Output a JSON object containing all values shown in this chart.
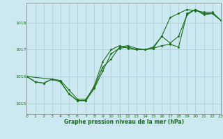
{
  "background_color": "#cce8f0",
  "grid_color": "#aaccdd",
  "line_color": "#1a6e1a",
  "xlabel": "Graphe pression niveau de la mer (hPa)",
  "xlim": [
    0,
    23
  ],
  "ylim": [
    1014.6,
    1018.75
  ],
  "yticks": [
    1015,
    1016,
    1017,
    1018
  ],
  "xticks": [
    0,
    1,
    2,
    3,
    4,
    5,
    6,
    7,
    8,
    9,
    10,
    11,
    12,
    13,
    14,
    15,
    16,
    17,
    18,
    19,
    20,
    21,
    22,
    23
  ],
  "series": [
    {
      "x": [
        0,
        1,
        2,
        3,
        4,
        5,
        6,
        7,
        8,
        9,
        10,
        11,
        12,
        13,
        14,
        15,
        16,
        17,
        18,
        19,
        20,
        21,
        22,
        23
      ],
      "y": [
        1016.0,
        1015.8,
        1015.75,
        1015.9,
        1015.8,
        1015.35,
        1015.1,
        1015.1,
        1015.55,
        1016.2,
        1016.85,
        1017.05,
        1017.1,
        1017.0,
        1017.0,
        1017.1,
        1017.5,
        1018.2,
        1018.35,
        1018.5,
        1018.45,
        1018.4,
        1018.4,
        1018.1
      ]
    },
    {
      "x": [
        0,
        1,
        2,
        3,
        4,
        5,
        6,
        7,
        8,
        9,
        10,
        11,
        12,
        13,
        14,
        15,
        16,
        17,
        18,
        19,
        20,
        21,
        22,
        23
      ],
      "y": [
        1016.0,
        1015.8,
        1015.75,
        1015.9,
        1015.8,
        1015.35,
        1015.1,
        1015.1,
        1015.65,
        1016.55,
        1017.0,
        1017.15,
        1017.05,
        1017.0,
        1017.0,
        1017.05,
        1017.15,
        1017.2,
        1017.1,
        1018.35,
        1018.5,
        1018.35,
        1018.35,
        1018.1
      ]
    },
    {
      "x": [
        0,
        3,
        4,
        5,
        6,
        7,
        8,
        9,
        10,
        11,
        12,
        13,
        14,
        15,
        16,
        17,
        18,
        19,
        20,
        21,
        22,
        23
      ],
      "y": [
        1016.0,
        1015.9,
        1015.85,
        1015.5,
        1015.15,
        1015.15,
        1015.6,
        1016.35,
        1016.65,
        1017.1,
        1017.15,
        1017.05,
        1017.0,
        1017.05,
        1017.5,
        1017.25,
        1017.5,
        1018.3,
        1018.5,
        1018.3,
        1018.35,
        1018.1
      ]
    }
  ]
}
